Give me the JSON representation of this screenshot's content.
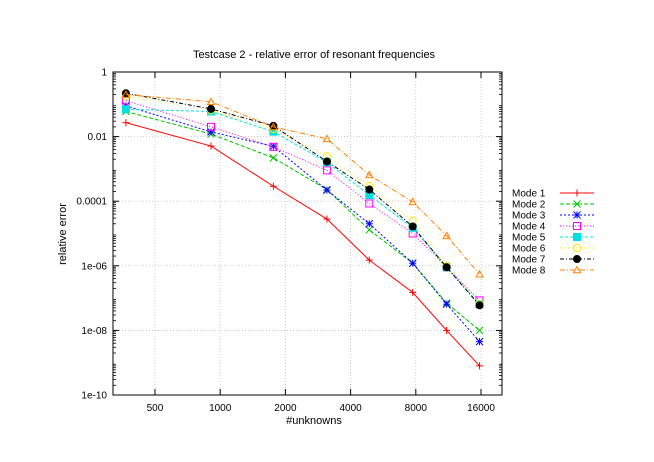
{
  "chart_data": {
    "type": "line",
    "title": "Testcase 2 - relative error of resonant frequencies",
    "xlabel": "#unknowns",
    "ylabel": "relative error",
    "x_scale": "log2",
    "y_scale": "log10",
    "xlim": [
      320,
      20000
    ],
    "ylim": [
      1e-10,
      1
    ],
    "x_ticks": [
      500,
      1000,
      2000,
      4000,
      8000,
      16000
    ],
    "x_tick_labels": [
      "500",
      "1000",
      "2000",
      "4000",
      "8000",
      "16000"
    ],
    "y_ticks": [
      1e-10,
      1e-08,
      1e-06,
      0.0001,
      0.01,
      1
    ],
    "y_tick_labels": [
      "1e-10",
      "1e-08",
      "1e-06",
      "0.0001",
      "0.01",
      "1"
    ],
    "grid": true,
    "legend_position": "right",
    "x": [
      367,
      907,
      1760,
      3110,
      4880,
      7740,
      11100,
      15750
    ],
    "series": [
      {
        "name": "Mode 1",
        "color": "#ff0000",
        "marker": "plus",
        "values": [
          0.027,
          0.0051,
          0.00029,
          2.8e-05,
          1.5e-06,
          1.5e-07,
          1e-08,
          8e-10
        ]
      },
      {
        "name": "Mode 2",
        "color": "#00c000",
        "marker": "cross",
        "values": [
          0.06,
          0.012,
          0.0022,
          0.00023,
          1.3e-05,
          1.2e-06,
          7e-08,
          1e-08
        ]
      },
      {
        "name": "Mode 3",
        "color": "#0000ff",
        "marker": "star",
        "values": [
          0.09,
          0.014,
          0.005,
          0.00022,
          2e-05,
          1.2e-06,
          6.5e-08,
          4.5e-09
        ]
      },
      {
        "name": "Mode 4",
        "color": "#ff00ff",
        "marker": "open-square",
        "values": [
          0.13,
          0.02,
          0.0048,
          0.0009,
          8.5e-05,
          1e-05,
          9e-07,
          8.5e-08
        ]
      },
      {
        "name": "Mode 5",
        "color": "#00e0e0",
        "marker": "filled-square",
        "values": [
          0.07,
          0.06,
          0.0142,
          0.0016,
          0.000155,
          1.5e-05,
          9e-07,
          6.5e-08
        ]
      },
      {
        "name": "Mode 6",
        "color": "#ffee00",
        "marker": "open-circle",
        "values": [
          0.18,
          0.065,
          0.017,
          0.0025,
          0.0003,
          2.5e-05,
          1e-06,
          6.5e-08
        ]
      },
      {
        "name": "Mode 7",
        "color": "#000000",
        "marker": "filled-circle",
        "values": [
          0.22,
          0.072,
          0.0215,
          0.0017,
          0.00023,
          1.65e-05,
          9e-07,
          6e-08
        ]
      },
      {
        "name": "Mode 8",
        "color": "#ff8000",
        "marker": "open-triangle",
        "values": [
          0.2,
          0.12,
          0.02,
          0.0085,
          0.00065,
          9.5e-05,
          8.5e-06,
          5.5e-07
        ]
      }
    ]
  }
}
